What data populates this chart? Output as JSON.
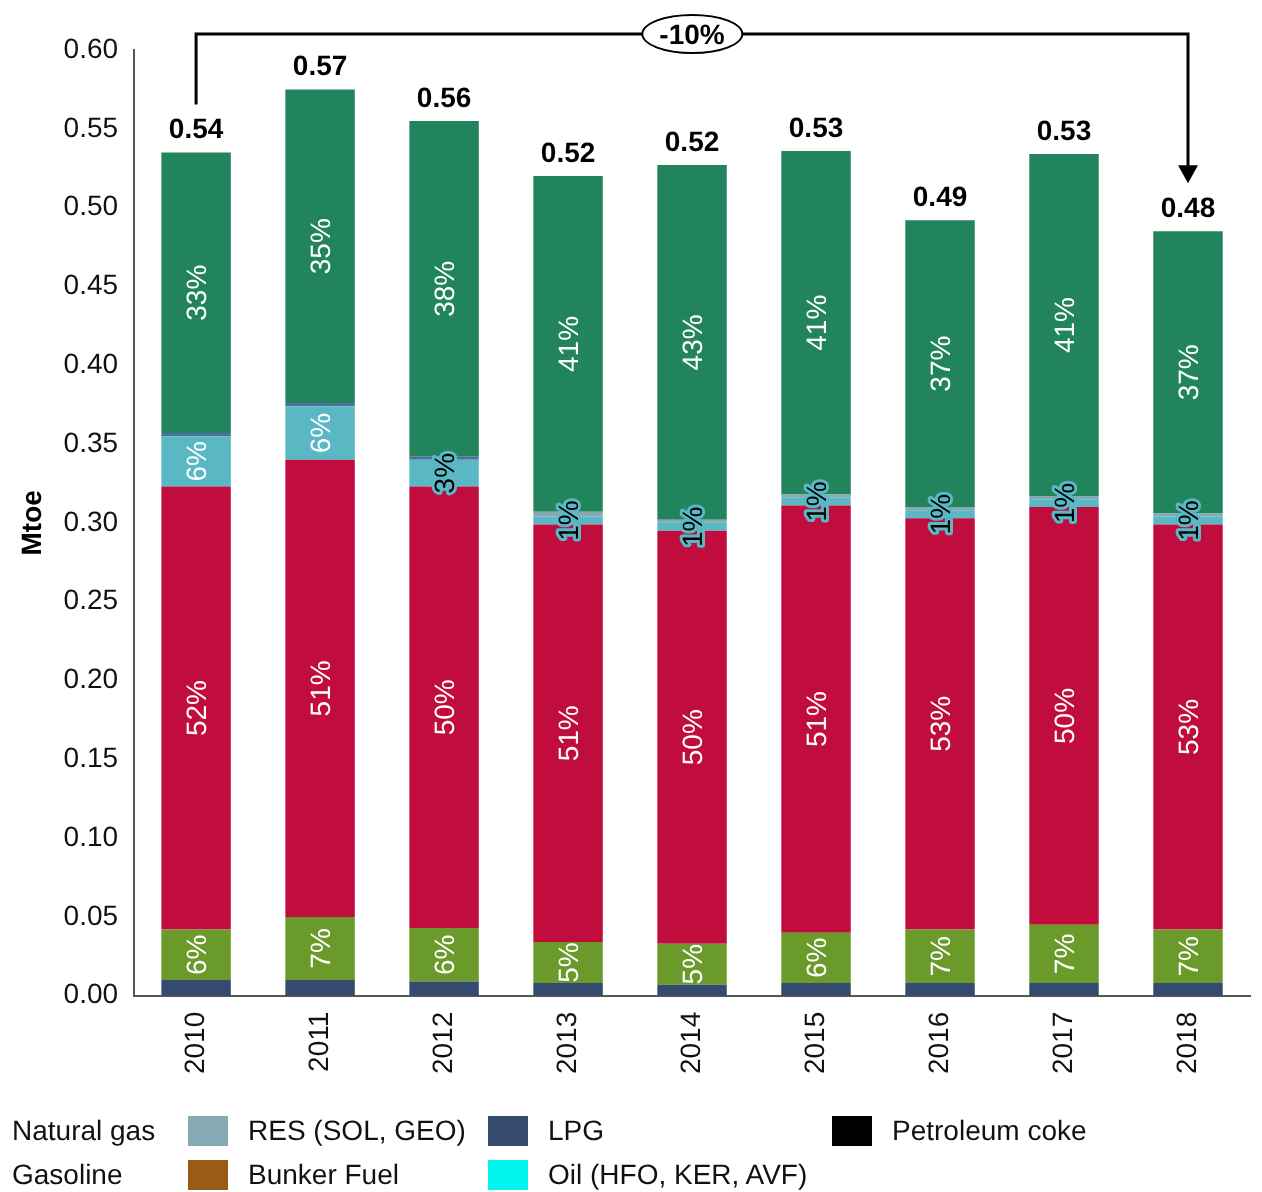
{
  "chart_data": {
    "type": "bar",
    "stacked": true,
    "ylabel": "Mtoe",
    "categories": [
      "2010",
      "2011",
      "2012",
      "2013",
      "2014",
      "2015",
      "2016",
      "2017",
      "2018"
    ],
    "ylim": [
      0,
      0.6
    ],
    "yticks": [
      {
        "value": 0,
        "label": "0.00"
      },
      0.05,
      {
        "value": 0.1,
        "label": "0.10"
      },
      0.15,
      {
        "value": 0.2,
        "label": "0.20"
      },
      0.25,
      {
        "value": 0.3,
        "label": "0.30"
      },
      0.35,
      {
        "value": 0.4,
        "label": "0.40"
      },
      0.45,
      {
        "value": 0.5,
        "label": "0.50"
      },
      0.55,
      {
        "value": 0.6,
        "label": "0.60"
      }
    ],
    "grid": false,
    "legend": "bottom",
    "series": [
      {
        "name": "LPG",
        "color": "#344a6e",
        "values": [
          0.01,
          0.01,
          0.009,
          0.008,
          0.007,
          0.008,
          0.008,
          0.008,
          0.008
        ]
      },
      {
        "color": "#6a9a2a",
        "values": [
          0.032,
          0.04,
          0.034,
          0.026,
          0.026,
          0.032,
          0.034,
          0.037,
          0.034
        ]
      },
      {
        "color": "#c00d3d",
        "values": [
          0.281,
          0.29,
          0.28,
          0.265,
          0.262,
          0.271,
          0.261,
          0.265,
          0.257
        ]
      },
      {
        "color": "#5ab8c4",
        "values": [
          0.032,
          0.034,
          0.017,
          0.005,
          0.005,
          0.005,
          0.005,
          0.005,
          0.005
        ]
      },
      {
        "name": "RES (SOL, GEO)",
        "color": "#86aab3",
        "values": [
          null,
          null,
          null,
          0.003,
          0.002,
          0.002,
          0.002,
          0.002,
          0.002
        ]
      },
      {
        "color": "#4e6e9e",
        "values": [
          0.002,
          0.002,
          0.002,
          null,
          null,
          null,
          null,
          null,
          null
        ]
      },
      {
        "color": "#22845c",
        "values": [
          0.178,
          0.199,
          0.213,
          0.213,
          0.225,
          0.218,
          0.182,
          0.217,
          0.179
        ]
      },
      {
        "name": "Petroleum coke",
        "color": "#000000",
        "values": [
          0,
          0,
          0,
          0,
          0,
          0,
          0,
          0,
          0
        ]
      },
      {
        "name": "Bunker Fuel",
        "color": "#9a5b16",
        "values": [
          0,
          0,
          0,
          0,
          0,
          0,
          0,
          0,
          0
        ]
      },
      {
        "name": "Oil (HFO, KER, AVF)",
        "color": "#00f5ee",
        "values": [
          0,
          0,
          0,
          0,
          0,
          0,
          0,
          0,
          0
        ]
      }
    ],
    "totals": [
      "0.54",
      "0.57",
      "0.56",
      "0.52",
      "0.52",
      "0.53",
      "0.49",
      "0.53",
      "0.48"
    ],
    "annotations": [
      "-10%",
      "Natural gas",
      "Gasoline",
      "6%",
      "7%",
      "6%",
      "5%",
      "5%",
      "6%",
      "7%",
      "7%",
      "7%",
      "52%",
      "51%",
      "50%",
      "51%",
      "50%",
      "51%",
      "53%",
      "50%",
      "53%",
      "6%",
      "6%",
      "3%",
      "1%",
      "1%",
      "1%",
      "1%",
      "1%",
      "1%",
      "33%",
      "35%",
      "38%",
      "41%",
      "43%",
      "41%",
      "37%",
      "41%",
      "37%"
    ]
  }
}
